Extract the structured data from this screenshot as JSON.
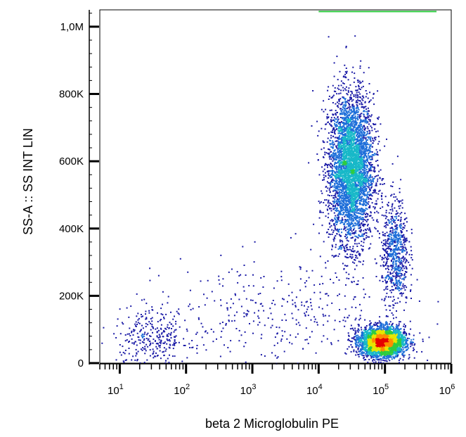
{
  "chart_data": {
    "type": "scatter",
    "subtype": "flow-cytometry-density-dot-plot",
    "xlabel": "beta 2 Microglobulin PE",
    "ylabel": "SS-A :: SS INT LIN",
    "x_scale": "log",
    "xlim": [
      5,
      1000000
    ],
    "ylim": [
      0,
      1050000
    ],
    "x_ticks": [
      {
        "base": "10",
        "exp": "1",
        "value": 10
      },
      {
        "base": "10",
        "exp": "2",
        "value": 100
      },
      {
        "base": "10",
        "exp": "3",
        "value": 1000
      },
      {
        "base": "10",
        "exp": "4",
        "value": 10000
      },
      {
        "base": "10",
        "exp": "5",
        "value": 100000
      },
      {
        "base": "10",
        "exp": "6",
        "value": 1000000
      }
    ],
    "y_ticks": [
      {
        "label": "0",
        "value": 0
      },
      {
        "label": "200K",
        "value": 200000
      },
      {
        "label": "400K",
        "value": 400000
      },
      {
        "label": "600K",
        "value": 600000
      },
      {
        "label": "800K",
        "value": 800000
      },
      {
        "label": "1,0M",
        "value": 1000000
      }
    ],
    "grid": false,
    "legend": "none",
    "color_scale": [
      "#1a1aa6",
      "#1e6fd9",
      "#18b8c8",
      "#2ecc40",
      "#e6e600",
      "#ff8c00",
      "#e60000"
    ],
    "populations": [
      {
        "x_center": 30000,
        "y_center": 580000,
        "x_spread_log10": 0.17,
        "y_spread": 110000,
        "count": 4200
      },
      {
        "x_center": 90000,
        "y_center": 65000,
        "x_spread_log10": 0.17,
        "y_spread": 22000,
        "count": 3200
      },
      {
        "x_center": 140000,
        "y_center": 330000,
        "x_spread_log10": 0.1,
        "y_spread": 80000,
        "count": 700
      },
      {
        "x_center": 30,
        "y_center": 75000,
        "x_spread_log10": 0.3,
        "y_spread": 45000,
        "count": 320
      },
      {
        "x_center": 3000,
        "y_center": 140000,
        "x_spread_log10": 0.9,
        "y_spread": 90000,
        "count": 380
      }
    ],
    "saturation_band": {
      "x_from": 10000,
      "x_to": 600000,
      "y": 1045000,
      "color": "#2ecc40"
    }
  }
}
